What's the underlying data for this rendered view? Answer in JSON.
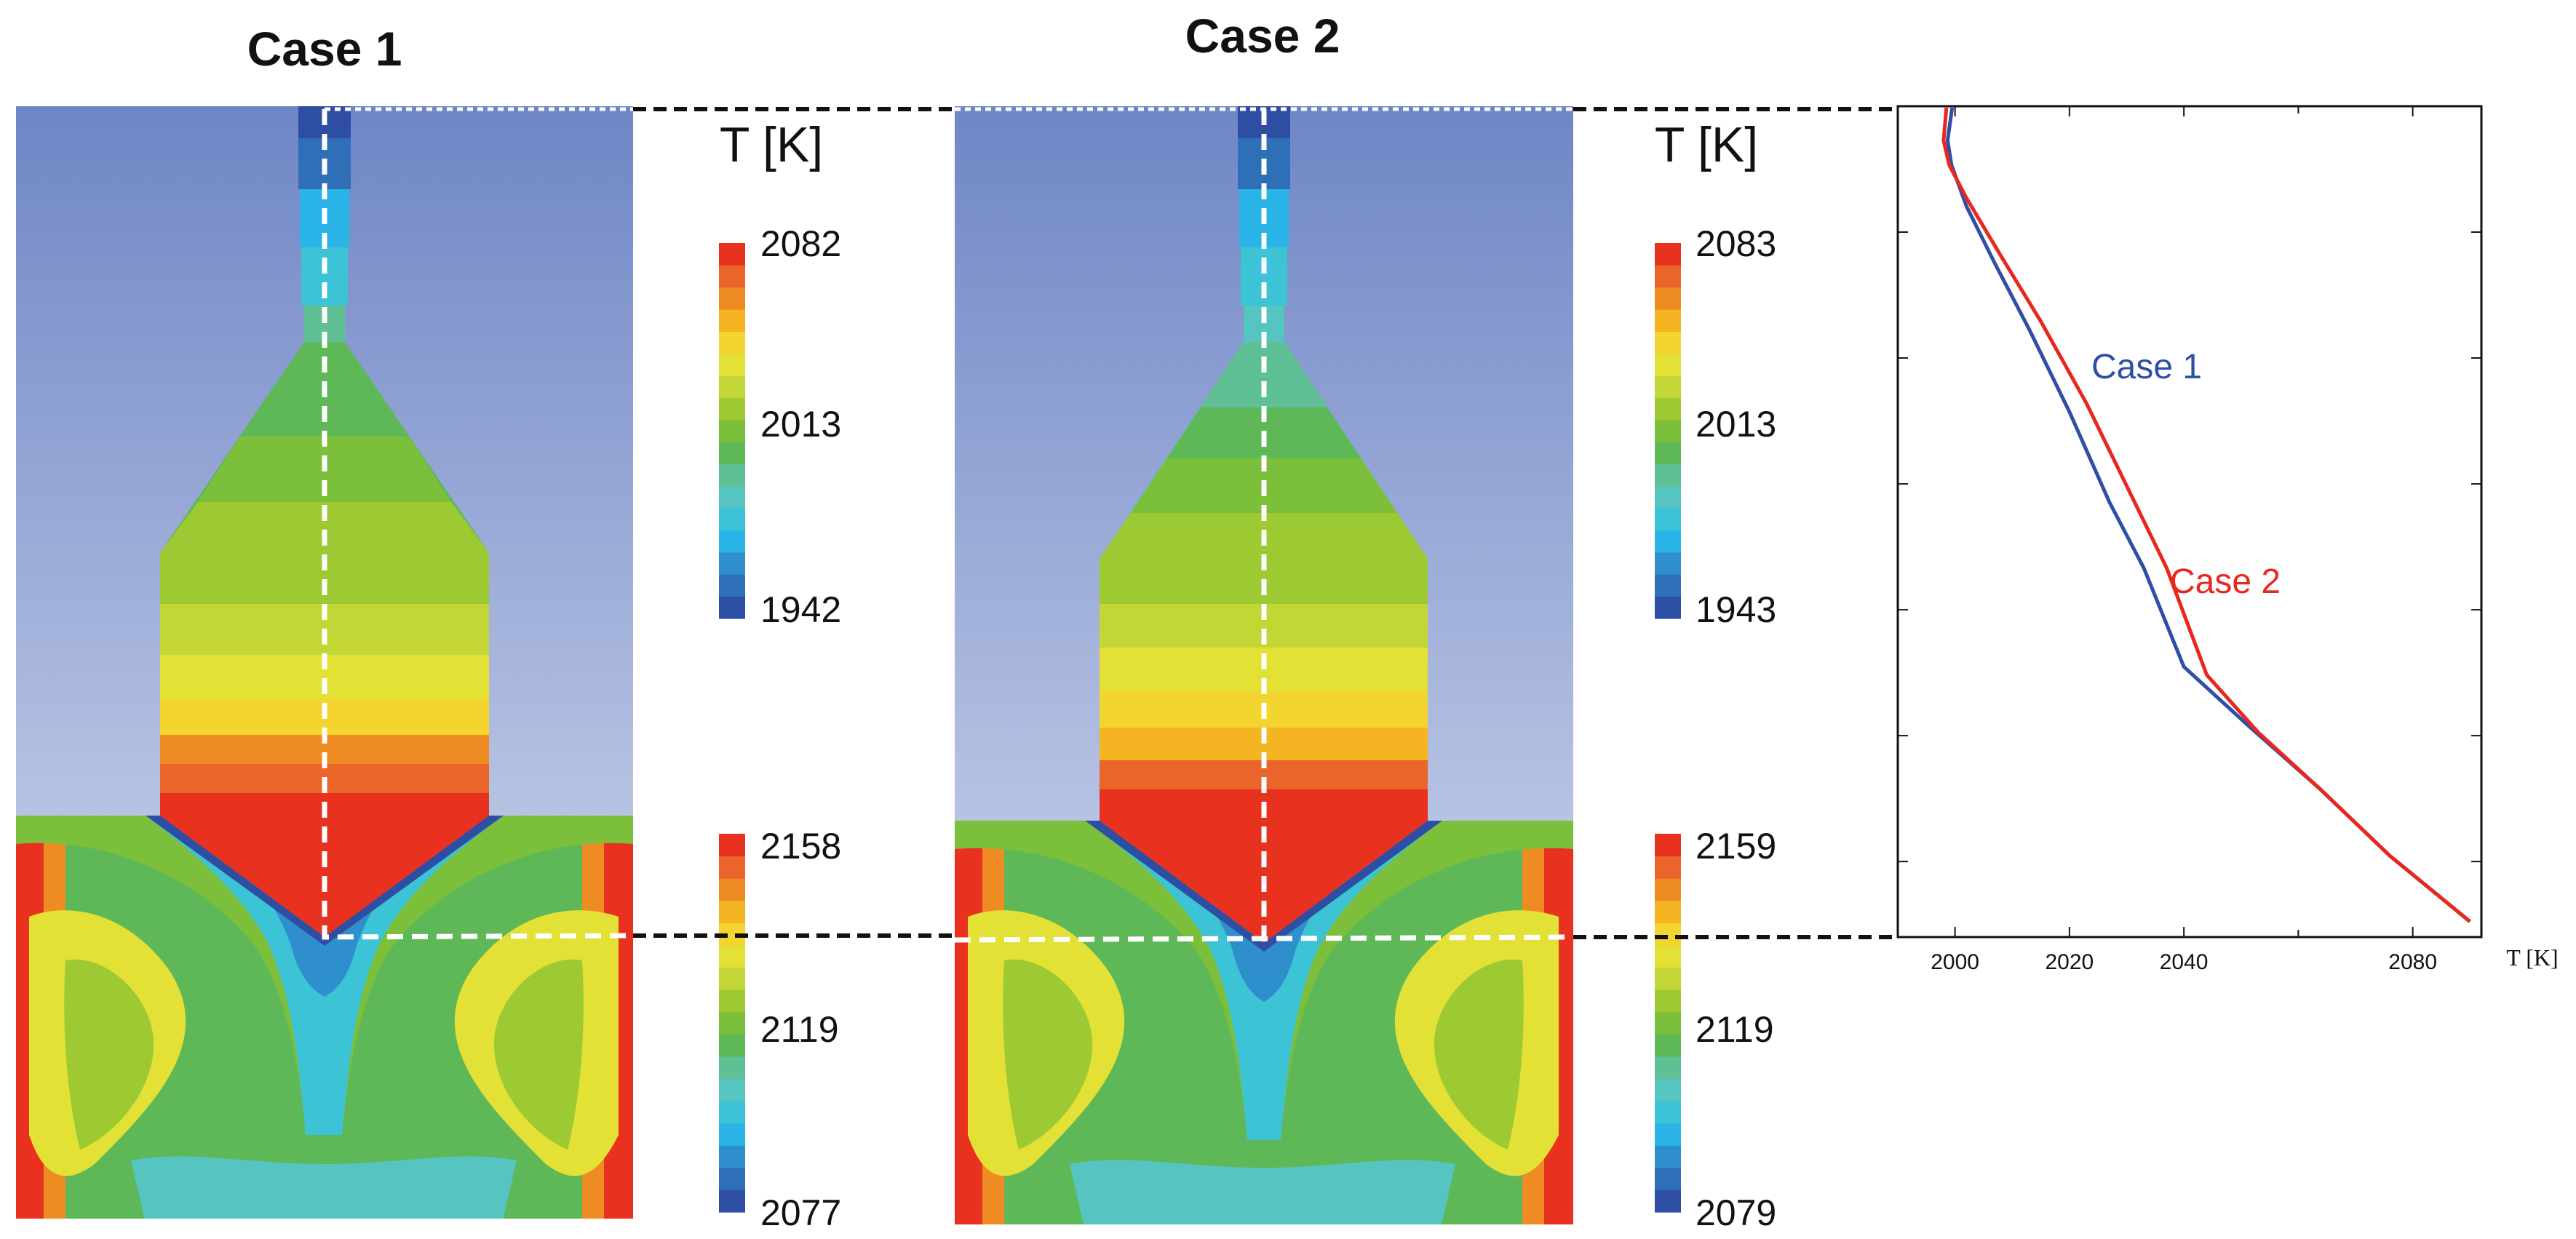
{
  "panels": [
    {
      "title": "Case 1",
      "colorbar_top": {
        "title": "T [K]",
        "max": "2082",
        "mid": "2013",
        "min": "1942"
      },
      "colorbar_bottom": {
        "max": "2158",
        "mid": "2119",
        "min": "2077"
      }
    },
    {
      "title": "Case 2",
      "colorbar_top": {
        "title": "T [K]",
        "max": "2083",
        "mid": "2013",
        "min": "1943"
      },
      "colorbar_bottom": {
        "max": "2159",
        "mid": "2119",
        "min": "2079"
      }
    }
  ],
  "colors": {
    "case1": "#2e4fa6",
    "case2": "#e8281f",
    "gas_top": "#6f86c6",
    "gas_bottom": "#b7c3e3",
    "scale": [
      "#2e4ea3",
      "#2f6fb8",
      "#2f8fcc",
      "#29b3e6",
      "#3cc3d6",
      "#56c4c0",
      "#5fc095",
      "#5eb857",
      "#7cbf3b",
      "#9dca33",
      "#c2d636",
      "#e3e036",
      "#f4d42e",
      "#f5b422",
      "#ee8b22",
      "#e9652a",
      "#e8321f"
    ]
  },
  "chart_data": {
    "type": "line",
    "xlabel": "T [K]",
    "xlim": [
      1990,
      2092
    ],
    "xticks": [
      "2000",
      "2020",
      "2040",
      "2080"
    ],
    "ylabel": "",
    "ylim": [
      0,
      1
    ],
    "y_axis_note": "height along dashed centerline (no tick labels shown)",
    "series": [
      {
        "name": "Case 1",
        "color": "#2e4fa6",
        "x": [
          1999.5,
          1998.7,
          1999.4,
          2002,
          2007,
          2013,
          2020,
          2027,
          2033,
          2040,
          2051,
          2064,
          2076,
          2090
        ],
        "y": [
          1.0,
          0.96,
          0.93,
          0.88,
          0.81,
          0.73,
          0.63,
          0.52,
          0.44,
          0.32,
          0.25,
          0.17,
          0.09,
          0.01
        ]
      },
      {
        "name": "Case 2",
        "color": "#e8281f",
        "x": [
          1998.5,
          1998.0,
          1999.0,
          2002,
          2008,
          2015,
          2023,
          2030,
          2037,
          2044,
          2053,
          2064,
          2076,
          2090
        ],
        "y": [
          1.0,
          0.96,
          0.93,
          0.89,
          0.82,
          0.74,
          0.64,
          0.54,
          0.44,
          0.31,
          0.24,
          0.17,
          0.09,
          0.01
        ]
      }
    ]
  }
}
